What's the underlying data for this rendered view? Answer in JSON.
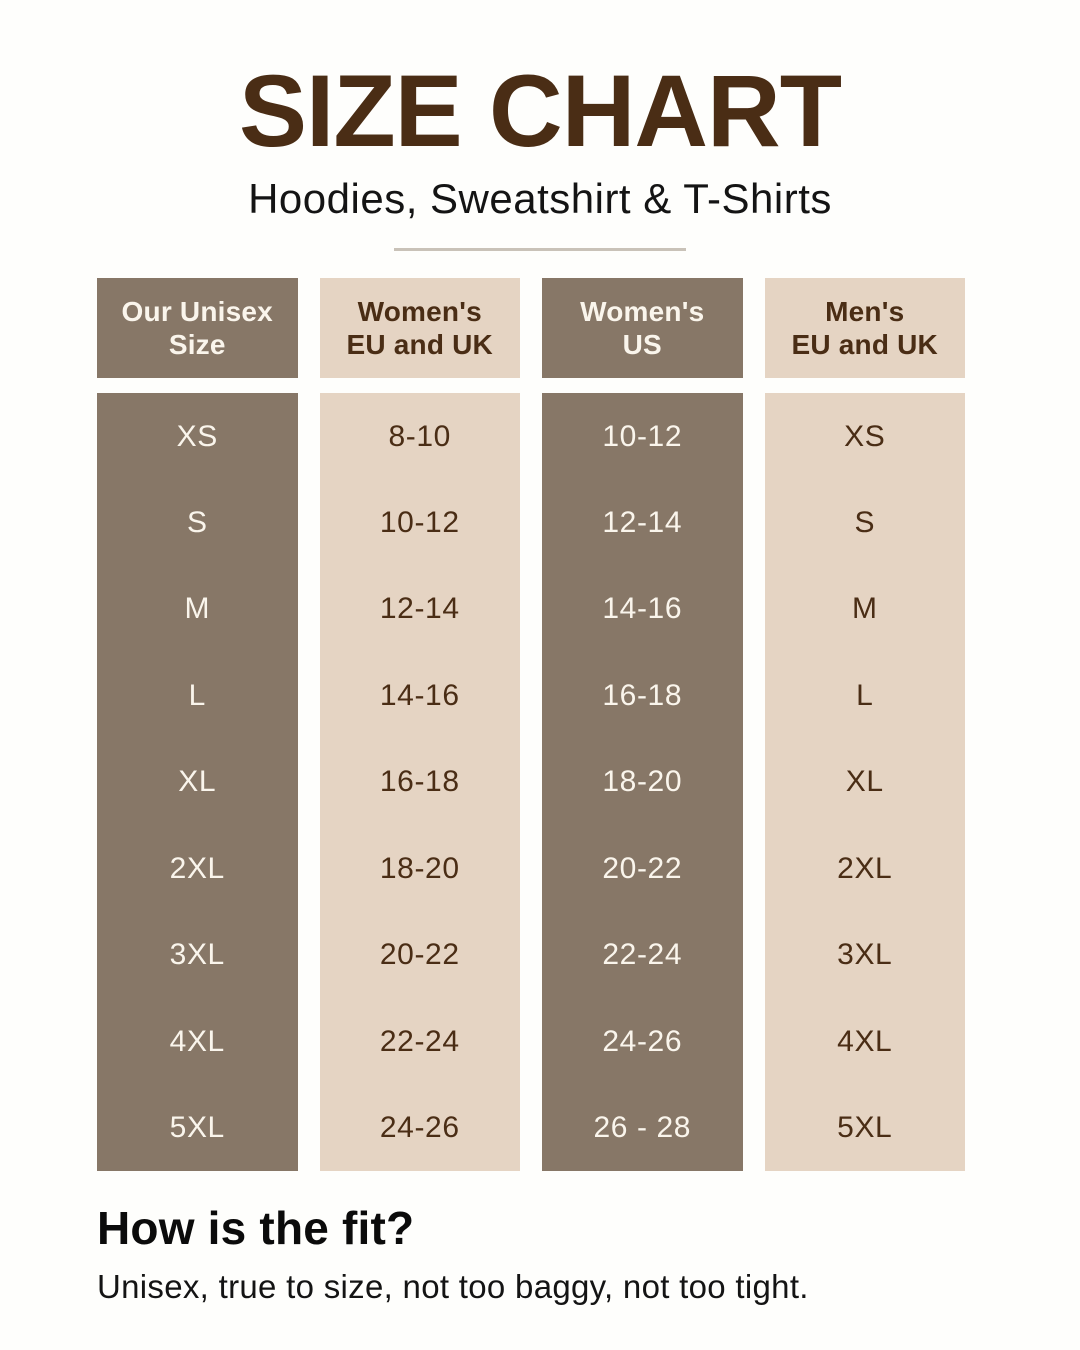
{
  "page": {
    "title": "SIZE CHART",
    "subtitle": "Hoodies, Sweatshirt & T-Shirts"
  },
  "colors": {
    "background": "#FEFEFC",
    "title_brown": "#4A2D15",
    "column_brown": "#877767",
    "column_cream": "#E5D4C3",
    "text_on_brown": "#FAF5EC",
    "text_on_cream": "#4A2D15",
    "divider": "#C9C2B8",
    "footer_text": "#141414"
  },
  "chart_data": {
    "type": "table",
    "title": "SIZE CHART",
    "subtitle": "Hoodies, Sweatshirt & T-Shirts",
    "columns": [
      {
        "header": "Our Unisex\nSize",
        "style": "brown",
        "values": [
          "XS",
          "S",
          "M",
          "L",
          "XL",
          "2XL",
          "3XL",
          "4XL",
          "5XL"
        ]
      },
      {
        "header": "Women's\nEU and UK",
        "style": "cream",
        "values": [
          "8-10",
          "10-12",
          "12-14",
          "14-16",
          "16-18",
          "18-20",
          "20-22",
          "22-24",
          "24-26"
        ]
      },
      {
        "header": "Women's\nUS",
        "style": "brown",
        "values": [
          "10-12",
          "12-14",
          "14-16",
          "16-18",
          "18-20",
          "20-22",
          "22-24",
          "24-26",
          "26 - 28"
        ]
      },
      {
        "header": "Men's\nEU and UK",
        "style": "cream",
        "values": [
          "XS",
          "S",
          "M",
          "L",
          "XL",
          "2XL",
          "3XL",
          "4XL",
          "5XL"
        ]
      }
    ]
  },
  "footer": {
    "heading": "How is the fit?",
    "note": "Unisex, true to size, not too baggy, not too tight."
  }
}
